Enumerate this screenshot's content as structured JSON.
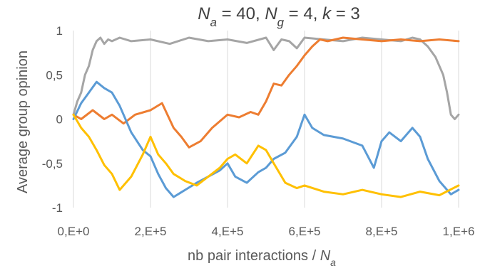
{
  "chart_data": {
    "type": "line",
    "title_parts": [
      {
        "text": "N",
        "italic": true
      },
      {
        "text": "a",
        "italic": true,
        "sub": true
      },
      {
        "text": " = 40, ",
        "italic": false
      },
      {
        "text": "N",
        "italic": true
      },
      {
        "text": "g",
        "italic": true,
        "sub": true
      },
      {
        "text": " = 4, ",
        "italic": false
      },
      {
        "text": "k",
        "italic": true
      },
      {
        "text": " = 3",
        "italic": false
      }
    ],
    "xlabel_parts": [
      {
        "text": "nb pair interactions / ",
        "italic": false
      },
      {
        "text": "N",
        "italic": true
      },
      {
        "text": "a",
        "italic": true,
        "sub": true
      }
    ],
    "ylabel": "Average group opinion",
    "xlim": [
      0,
      1000000
    ],
    "ylim": [
      -1,
      1
    ],
    "x_ticks": [
      0,
      200000,
      400000,
      600000,
      800000,
      1000000
    ],
    "x_tick_labels": [
      "0,E+0",
      "2,E+5",
      "4,E+5",
      "6,E+5",
      "8,E+5",
      "1,E+6"
    ],
    "y_ticks": [
      1,
      0.5,
      0,
      -0.5,
      -1
    ],
    "y_tick_labels": [
      "1",
      "0,5",
      "0",
      "-0,5",
      "-1"
    ],
    "grid": "vertical",
    "legend": "none",
    "series": [
      {
        "color": "#a5a5a5",
        "x": [
          0,
          10000,
          20000,
          30000,
          40000,
          50000,
          60000,
          70000,
          80000,
          90000,
          100000,
          120000,
          150000,
          200000,
          250000,
          300000,
          350000,
          400000,
          450000,
          500000,
          520000,
          540000,
          560000,
          580000,
          600000,
          650000,
          700000,
          750000,
          800000,
          850000,
          880000,
          900000,
          920000,
          940000,
          950000,
          960000,
          970000,
          980000,
          990000,
          1000000
        ],
        "y": [
          0.05,
          0.2,
          0.3,
          0.5,
          0.6,
          0.78,
          0.88,
          0.92,
          0.85,
          0.9,
          0.88,
          0.92,
          0.88,
          0.9,
          0.85,
          0.92,
          0.88,
          0.9,
          0.86,
          0.92,
          0.78,
          0.9,
          0.88,
          0.8,
          0.92,
          0.9,
          0.88,
          0.92,
          0.9,
          0.88,
          0.92,
          0.9,
          0.82,
          0.7,
          0.6,
          0.5,
          0.3,
          0.05,
          0.0,
          0.05
        ]
      },
      {
        "color": "#ed7d31",
        "x": [
          0,
          20000,
          50000,
          80000,
          100000,
          130000,
          160000,
          200000,
          230000,
          260000,
          280000,
          300000,
          330000,
          360000,
          400000,
          430000,
          460000,
          480000,
          500000,
          520000,
          540000,
          560000,
          580000,
          600000,
          620000,
          640000,
          660000,
          700000,
          750000,
          800000,
          850000,
          900000,
          950000,
          1000000
        ],
        "y": [
          0.05,
          0.0,
          0.1,
          0.0,
          0.05,
          -0.05,
          0.05,
          0.1,
          0.18,
          -0.1,
          -0.2,
          -0.32,
          -0.25,
          -0.1,
          0.05,
          0.02,
          0.08,
          0.05,
          0.2,
          0.4,
          0.38,
          0.5,
          0.6,
          0.72,
          0.82,
          0.9,
          0.88,
          0.92,
          0.9,
          0.88,
          0.9,
          0.88,
          0.9,
          0.88
        ]
      },
      {
        "color": "#5b9bd5",
        "x": [
          0,
          20000,
          40000,
          60000,
          80000,
          100000,
          120000,
          150000,
          180000,
          200000,
          220000,
          240000,
          260000,
          290000,
          320000,
          350000,
          380000,
          400000,
          420000,
          450000,
          480000,
          500000,
          520000,
          550000,
          580000,
          600000,
          620000,
          650000,
          700000,
          750000,
          780000,
          800000,
          820000,
          850000,
          880000,
          900000,
          920000,
          950000,
          980000,
          1000000
        ],
        "y": [
          0.0,
          0.18,
          0.3,
          0.42,
          0.35,
          0.3,
          0.15,
          -0.15,
          -0.35,
          -0.42,
          -0.62,
          -0.78,
          -0.88,
          -0.8,
          -0.72,
          -0.65,
          -0.58,
          -0.5,
          -0.65,
          -0.72,
          -0.6,
          -0.55,
          -0.45,
          -0.38,
          -0.2,
          0.05,
          -0.1,
          -0.18,
          -0.22,
          -0.3,
          -0.55,
          -0.25,
          -0.15,
          -0.25,
          -0.1,
          -0.2,
          -0.45,
          -0.7,
          -0.85,
          -0.8
        ]
      },
      {
        "color": "#ffc000",
        "x": [
          0,
          20000,
          40000,
          60000,
          80000,
          100000,
          120000,
          150000,
          180000,
          200000,
          220000,
          240000,
          260000,
          290000,
          320000,
          350000,
          380000,
          400000,
          420000,
          450000,
          480000,
          500000,
          520000,
          550000,
          580000,
          600000,
          650000,
          700000,
          750000,
          800000,
          850000,
          900000,
          950000,
          1000000
        ],
        "y": [
          0.05,
          -0.1,
          -0.2,
          -0.35,
          -0.52,
          -0.62,
          -0.8,
          -0.65,
          -0.4,
          -0.2,
          -0.4,
          -0.5,
          -0.62,
          -0.7,
          -0.75,
          -0.65,
          -0.55,
          -0.45,
          -0.4,
          -0.5,
          -0.3,
          -0.35,
          -0.5,
          -0.72,
          -0.78,
          -0.75,
          -0.82,
          -0.85,
          -0.8,
          -0.85,
          -0.88,
          -0.82,
          -0.86,
          -0.75
        ]
      }
    ]
  }
}
